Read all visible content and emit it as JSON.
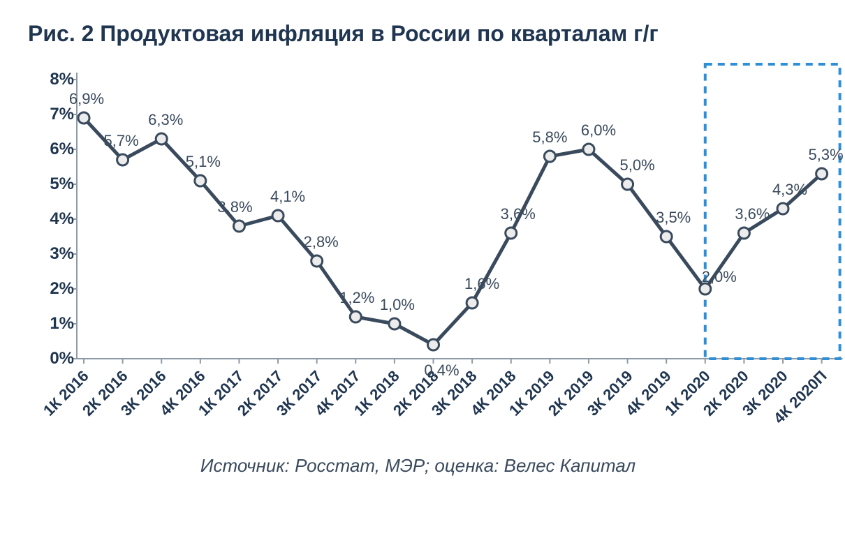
{
  "title": "Рис. 2 Продуктовая инфляция в России по кварталам г/г",
  "source": "Источник: Росстат, МЭР; оценка: Велес Капитал",
  "inflation_chart": {
    "type": "line",
    "ylim": [
      0,
      8
    ],
    "ytick_step": 1,
    "ytick_suffix": "%",
    "axis_color": "#8d9aa7",
    "line_color": "#3a4a5d",
    "line_width": 5,
    "marker_radius": 8,
    "marker_fill": "#ececec",
    "marker_stroke": "#3a4a5d",
    "marker_stroke_width": 3,
    "highlight_box": {
      "stroke": "#2f8fd6",
      "stroke_width": 4,
      "dash": "10 8",
      "from_index": 16,
      "to_index": 19
    },
    "background_color": "#ffffff",
    "title_color": "#1f3550",
    "title_fontsize": 32,
    "label_fontsize": 22,
    "tick_fontsize_y": 24,
    "tick_fontsize_x": 22,
    "categories": [
      "1К 2016",
      "2К 2016",
      "3К 2016",
      "4К 2016",
      "1К 2017",
      "2К 2017",
      "3К 2017",
      "4К 2017",
      "1К 2018",
      "2К 2018",
      "3К 2018",
      "4К 2018",
      "1К 2019",
      "2К 2019",
      "3К 2019",
      "4К 2019",
      "1К 2020",
      "2К 2020",
      "3К 2020",
      "4К 2020П"
    ],
    "values": [
      6.9,
      5.7,
      6.3,
      5.1,
      3.8,
      4.1,
      2.8,
      1.2,
      1.0,
      0.4,
      1.6,
      3.6,
      5.8,
      6.0,
      5.0,
      3.5,
      2.0,
      3.6,
      4.3,
      5.3
    ],
    "value_labels": [
      "6,9%",
      "5,7%",
      "6,3%",
      "5,1%",
      "3,8%",
      "4,1%",
      "2,8%",
      "1,2%",
      "1,0%",
      "0,4%",
      "1,6%",
      "3,6%",
      "5,8%",
      "6,0%",
      "5,0%",
      "3,5%",
      "2,0%",
      "3,6%",
      "4,3%",
      "5,3%"
    ],
    "label_offsets_y": [
      -14,
      -14,
      -14,
      -14,
      -14,
      -14,
      -14,
      -14,
      -14,
      24,
      -14,
      -14,
      -14,
      -14,
      -14,
      -14,
      -4,
      -14,
      -14,
      -14
    ],
    "label_offsets_x": [
      4,
      -2,
      6,
      4,
      -6,
      14,
      6,
      2,
      4,
      12,
      14,
      10,
      0,
      14,
      14,
      10,
      20,
      12,
      10,
      6
    ]
  }
}
